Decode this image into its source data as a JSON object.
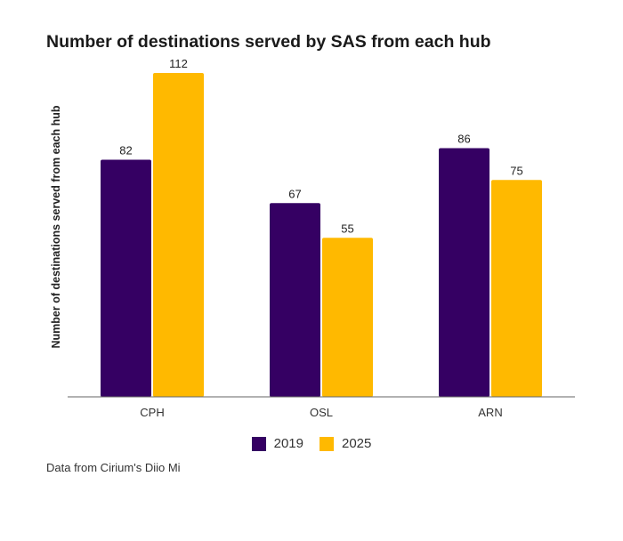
{
  "chart_data": {
    "type": "bar",
    "title": "Number of destinations served by SAS from each hub",
    "xlabel": "",
    "ylabel": "Number of destinations served from each hub",
    "categories": [
      "CPH",
      "OSL",
      "ARN"
    ],
    "series": [
      {
        "name": "2019",
        "color": "#350063",
        "values": [
          82,
          67,
          86
        ]
      },
      {
        "name": "2025",
        "color": "#FFB900",
        "values": [
          112,
          55,
          75
        ]
      }
    ],
    "ylim": [
      0,
      120
    ],
    "grid": false,
    "legend": "bottom-center"
  },
  "source": "Data from Cirium's Diio Mi"
}
